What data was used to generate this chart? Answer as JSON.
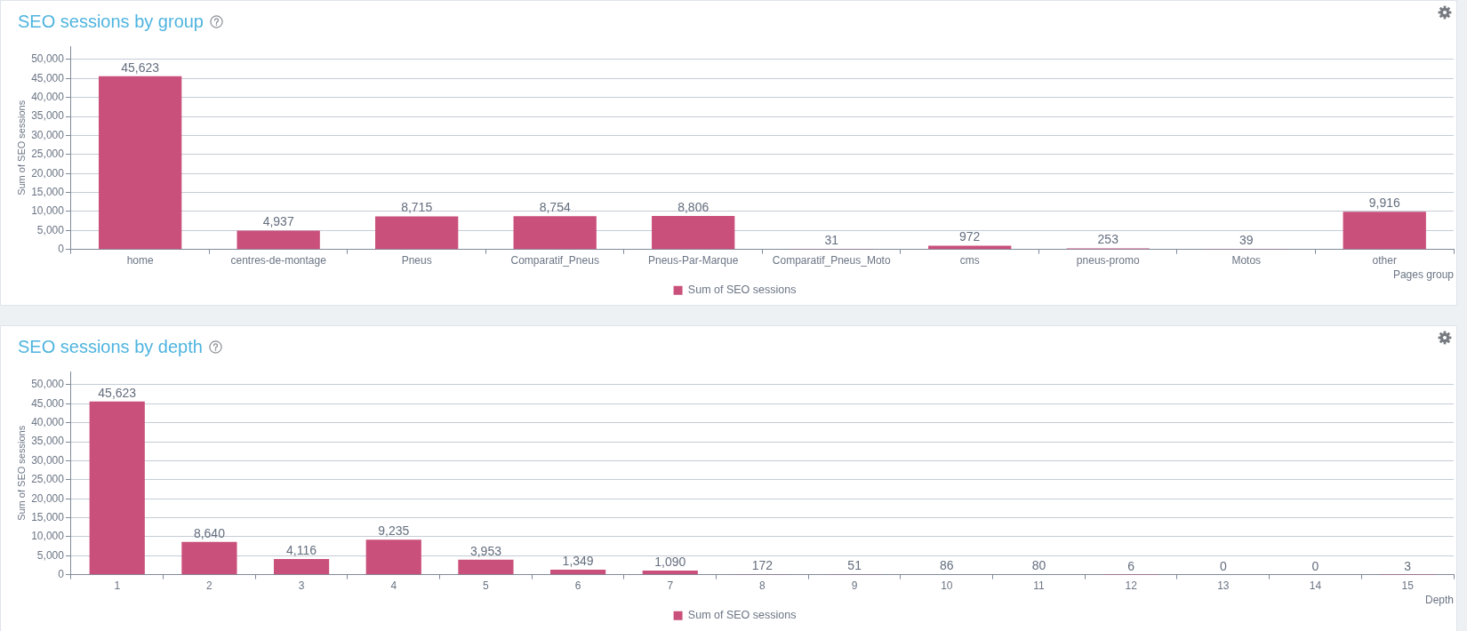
{
  "chart_data": [
    {
      "type": "bar",
      "title": "SEO sessions by group",
      "xlabel": "Pages group",
      "ylabel": "Sum of SEO sessions",
      "categories": [
        "home",
        "centres-de-montage",
        "Pneus",
        "Comparatif_Pneus",
        "Pneus-Par-Marque",
        "Comparatif_Pneus_Moto",
        "cms",
        "pneus-promo",
        "Motos",
        "other"
      ],
      "series": [
        {
          "name": "Sum of SEO sessions",
          "color": "#ca507c",
          "values": [
            45623,
            4937,
            8715,
            8754,
            8806,
            31,
            972,
            253,
            39,
            9916
          ],
          "value_labels": [
            "45,623",
            "4,937",
            "8,715",
            "8,754",
            "8,806",
            "31",
            "972",
            "253",
            "39",
            "9,916"
          ]
        }
      ],
      "ylim": [
        0,
        53500
      ],
      "yticks": [
        {
          "value": 0,
          "label": "0"
        },
        {
          "value": 5000,
          "label": "5,000"
        },
        {
          "value": 10000,
          "label": "10,000"
        },
        {
          "value": 15000,
          "label": "15,000"
        },
        {
          "value": 20000,
          "label": "20,000"
        },
        {
          "value": 25000,
          "label": "25,000"
        },
        {
          "value": 30000,
          "label": "30,000"
        },
        {
          "value": 35000,
          "label": "35,000"
        },
        {
          "value": 40000,
          "label": "40,000"
        },
        {
          "value": 45000,
          "label": "45,000"
        },
        {
          "value": 50000,
          "label": "50,000"
        }
      ],
      "grid": "y",
      "legend": "bottom"
    },
    {
      "type": "bar",
      "title": "SEO sessions by depth",
      "xlabel": "Depth",
      "ylabel": "Sum of SEO sessions",
      "categories": [
        "1",
        "2",
        "3",
        "4",
        "5",
        "6",
        "7",
        "8",
        "9",
        "10",
        "11",
        "12",
        "13",
        "14",
        "15"
      ],
      "series": [
        {
          "name": "Sum of SEO sessions",
          "color": "#ca507c",
          "values": [
            45623,
            8640,
            4116,
            9235,
            3953,
            1349,
            1090,
            172,
            51,
            86,
            80,
            6,
            0,
            0,
            3
          ],
          "value_labels": [
            "45,623",
            "8,640",
            "4,116",
            "9,235",
            "3,953",
            "1,349",
            "1,090",
            "172",
            "51",
            "86",
            "80",
            "6",
            "0",
            "0",
            "3"
          ]
        }
      ],
      "ylim": [
        0,
        53500
      ],
      "yticks": [
        {
          "value": 0,
          "label": "0"
        },
        {
          "value": 5000,
          "label": "5,000"
        },
        {
          "value": 10000,
          "label": "10,000"
        },
        {
          "value": 15000,
          "label": "15,000"
        },
        {
          "value": 20000,
          "label": "20,000"
        },
        {
          "value": 25000,
          "label": "25,000"
        },
        {
          "value": 30000,
          "label": "30,000"
        },
        {
          "value": 35000,
          "label": "35,000"
        },
        {
          "value": 40000,
          "label": "40,000"
        },
        {
          "value": 45000,
          "label": "45,000"
        },
        {
          "value": 50000,
          "label": "50,000"
        }
      ],
      "grid": "y",
      "legend": "bottom"
    }
  ]
}
